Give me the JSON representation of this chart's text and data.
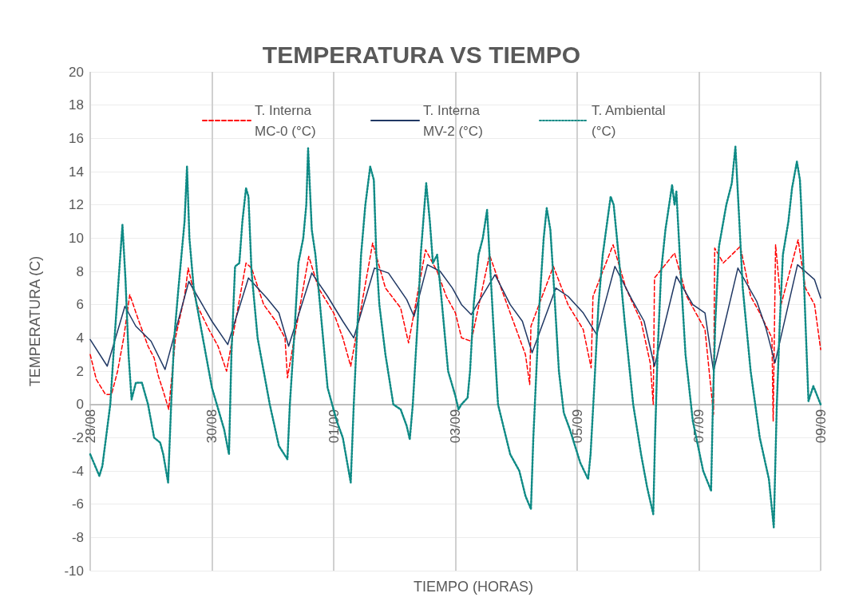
{
  "chart_data": {
    "type": "line",
    "title": "TEMPERATURA VS TIEMPO",
    "xlabel": "TIEMPO (HORAS)",
    "ylabel": "TEMPERATURA (C)",
    "xlim": [
      "--08-28",
      "--09-09"
    ],
    "xticks": [
      {
        "value": "--08-28",
        "label": "28/08"
      },
      {
        "value": "--08-30",
        "label": "30/08"
      },
      {
        "value": "--09-01",
        "label": "01/09"
      },
      {
        "value": "--09-03",
        "label": "03/09"
      },
      {
        "value": "--09-05",
        "label": "05/09"
      },
      {
        "value": "--09-07",
        "label": "07/09"
      },
      {
        "value": "--09-09",
        "label": "09/09"
      }
    ],
    "ylim": [
      -10,
      20
    ],
    "yticks": [
      -10,
      -8,
      -6,
      -4,
      -2,
      0,
      2,
      4,
      6,
      8,
      10,
      12,
      14,
      16,
      18,
      20
    ],
    "grid": true,
    "legend": "top",
    "marker": "none",
    "series": [
      {
        "name": "T. Interna MC-0 (°C)",
        "color": "#ff0000",
        "line_style": "dashed",
        "x": [
          "--08-28T00:00",
          "--08-28T02:24",
          "--08-28T06:00",
          "--08-28T08:24",
          "--08-28T10:48",
          "--08-28T13:12",
          "--08-28T15:36",
          "--08-28T19:12",
          "--08-28T22:48",
          "--08-29T01:12",
          "--08-29T02:53",
          "--08-29T04:48",
          "--08-29T06:58",
          "--08-29T09:36",
          "--08-29T13:12",
          "--08-29T14:38",
          "--08-29T18:00",
          "--08-29T22:48",
          "--08-30T02:24",
          "--08-30T05:46",
          "--08-30T13:26",
          "--08-30T15:36",
          "--08-30T20:24",
          "--08-31T01:12",
          "--08-31T04:48",
          "--08-31T05:46",
          "--08-31T14:10",
          "--08-31T18:00",
          "--09-01T00:00",
          "--09-01T03:36",
          "--09-01T06:43",
          "--09-01T15:22",
          "--09-01T20:24",
          "--09-02T02:24",
          "--09-02T05:31",
          "--09-02T12:14",
          "--09-02T16:48",
          "--09-02T20:24",
          "--09-03T00:00",
          "--09-03T02:24",
          "--09-03T06:14",
          "--09-03T13:26",
          "--09-03T18:00",
          "--09-03T22:48",
          "--09-04T03:36",
          "--09-04T05:17",
          "--09-04T05:46",
          "--09-04T14:38",
          "--09-04T20:24",
          "--09-05T02:24",
          "--09-05T05:31",
          "--09-05T06:14",
          "--09-05T14:10",
          "--09-05T19:12",
          "--09-06T01:12",
          "--09-06T04:48",
          "--09-06T06:00",
          "--09-06T06:29",
          "--09-06T14:24",
          "--09-06T19:12",
          "--09-07T02:24",
          "--09-07T05:46",
          "--09-07T06:14",
          "--09-07T09:36",
          "--09-07T16:19",
          "--09-07T20:24",
          "--09-08T00:00",
          "--09-08T04:48",
          "--09-08T05:17",
          "--09-08T06:14",
          "--09-08T08:24",
          "--09-08T15:07",
          "--09-08T18:00",
          "--09-08T21:36",
          "--09-09T00:00"
        ],
        "values": [
          3.0,
          1.5,
          0.6,
          0.6,
          2,
          4,
          6.6,
          5,
          3.5,
          2.8,
          1.7,
          0.8,
          -0.3,
          4,
          6.5,
          8.2,
          6,
          4.5,
          3.5,
          2.0,
          8.5,
          8.2,
          6,
          5,
          4,
          1.6,
          8.9,
          7,
          5.5,
          4,
          2.3,
          9.7,
          7,
          5.8,
          3.7,
          9.3,
          8,
          6.5,
          5.5,
          4,
          3.8,
          9.0,
          7,
          5,
          3,
          1.2,
          4.7,
          8.3,
          6,
          4.5,
          2.2,
          6.5,
          9.6,
          7,
          5,
          2.5,
          0,
          7.6,
          9.1,
          6.5,
          4.5,
          -0.6,
          9.4,
          8.5,
          9.5,
          6.5,
          5.5,
          4,
          -1.0,
          9.6,
          6,
          9.9,
          7,
          6,
          3.3
        ]
      },
      {
        "name": "T. Interna MV-2 (°C)",
        "color": "#203864",
        "line_style": "solid",
        "x": [
          "--08-28T00:00",
          "--08-28T06:43",
          "--08-28T13:41",
          "--08-28T18:00",
          "--08-29T00:00",
          "--08-29T05:31",
          "--08-29T14:53",
          "--08-30T00:00",
          "--08-30T06:14",
          "--08-30T14:24",
          "--08-30T21:36",
          "--08-31T02:24",
          "--08-31T06:14",
          "--08-31T15:22",
          "--08-31T21:36",
          "--09-01T03:36",
          "--09-01T07:55",
          "--09-01T16:05",
          "--09-01T21:36",
          "--09-02T04:48",
          "--09-02T07:41",
          "--09-02T12:58",
          "--09-02T18:00",
          "--09-02T22:48",
          "--09-03T02:24",
          "--09-03T06:14",
          "--09-03T15:36",
          "--09-03T21:36",
          "--09-04T02:24",
          "--09-04T06:14",
          "--09-04T15:36",
          "--09-04T20:24",
          "--09-05T02:24",
          "--09-05T07:41",
          "--09-05T14:53",
          "--09-05T21:36",
          "--09-06T02:24",
          "--09-06T06:29",
          "--09-06T15:07",
          "--09-06T21:36",
          "--09-07T02:24",
          "--09-07T05:46",
          "--09-07T15:22",
          "--09-07T22:48",
          "--09-08T02:24",
          "--09-08T06:00",
          "--09-08T14:53",
          "--09-08T21:36",
          "--09-09T00:00"
        ],
        "values": [
          3.9,
          2.3,
          5.9,
          4.7,
          3.8,
          2.1,
          7.4,
          5,
          3.6,
          7.6,
          6.4,
          5.5,
          3.5,
          7.9,
          6.5,
          5,
          4.0,
          8.2,
          7.9,
          6.3,
          5.3,
          8.4,
          8.0,
          7,
          6,
          5.4,
          7.8,
          6,
          5,
          3.1,
          7.0,
          6.5,
          5.5,
          4.2,
          8.3,
          6.3,
          5,
          2.3,
          7.7,
          6,
          5.5,
          2.0,
          8.2,
          6.2,
          4.6,
          2.5,
          8.4,
          7.5,
          6.4
        ]
      },
      {
        "name": "T. Ambiental (°C)",
        "color": "#0e8a85",
        "line_style": "dotted",
        "x": [
          "--08-28T00:00",
          "--08-28T03:36",
          "--08-28T04:48",
          "--08-28T07:55",
          "--08-28T09:36",
          "--08-28T11:31",
          "--08-28T12:43",
          "--08-28T13:55",
          "--08-28T15:07",
          "--08-28T16:19",
          "--08-28T18:00",
          "--08-28T20:24",
          "--08-28T22:48",
          "--08-29T01:12",
          "--08-29T03:36",
          "--08-29T04:48",
          "--08-29T06:43",
          "--08-29T07:55",
          "--08-29T09:07",
          "--08-29T10:48",
          "--08-29T12:00",
          "--08-29T13:12",
          "--08-29T14:10",
          "--08-29T15:07",
          "--08-29T16:48",
          "--08-29T20:24",
          "--08-30T00:00",
          "--08-30T04:48",
          "--08-30T06:43",
          "--08-30T07:41",
          "--08-30T09:07",
          "--08-30T10:48",
          "--08-30T12:00",
          "--08-30T13:26",
          "--08-30T14:24",
          "--08-30T15:36",
          "--08-30T18:00",
          "--08-30T22:48",
          "--08-31T02:24",
          "--08-31T05:46",
          "--08-31T06:43",
          "--08-31T08:24",
          "--08-31T10:05",
          "--08-31T12:00",
          "--08-31T13:12",
          "--08-31T13:55",
          "--08-31T15:22",
          "--08-31T16:48",
          "--08-31T19:12",
          "--08-31T21:36",
          "--09-01T01:12",
          "--09-01T03:36",
          "--09-01T06:43",
          "--09-01T07:55",
          "--09-01T09:07",
          "--09-01T10:48",
          "--09-01T12:29",
          "--09-01T14:24",
          "--09-01T15:50",
          "--09-01T16:48",
          "--09-01T18:00",
          "--09-01T20:24",
          "--09-01T23:31",
          "--09-02T02:24",
          "--09-02T04:48",
          "--09-02T06:00",
          "--09-02T07:12",
          "--09-02T09:07",
          "--09-02T10:19",
          "--09-02T12:29",
          "--09-02T13:55",
          "--09-02T15:07",
          "--09-02T16:48",
          "--09-02T18:43",
          "--09-02T21:07",
          "--09-03T00:00",
          "--09-03T01:12",
          "--09-03T02:24",
          "--09-03T04:48",
          "--09-03T05:46",
          "--09-03T07:12",
          "--09-03T09:07",
          "--09-03T10:48",
          "--09-03T12:29",
          "--09-03T13:26",
          "--09-03T14:53",
          "--09-03T16:48",
          "--09-03T21:36",
          "--09-04T01:12",
          "--09-04T03:36",
          "--09-04T05:46",
          "--09-04T06:43",
          "--09-04T07:55",
          "--09-04T09:07",
          "--09-04T10:48",
          "--09-04T12:00",
          "--09-04T13:26",
          "--09-04T14:53",
          "--09-04T16:48",
          "--09-04T18:43",
          "--09-04T21:07",
          "--09-05T01:12",
          "--09-05T04:19",
          "--09-05T05:17",
          "--09-05T06:43",
          "--09-05T08:24",
          "--09-05T10:05",
          "--09-05T13:12",
          "--09-05T14:24",
          "--09-05T16:19",
          "--09-05T18:43",
          "--09-05T22:05",
          "--09-06T01:12",
          "--09-06T03:36",
          "--09-06T06:00",
          "--09-06T06:43",
          "--09-06T07:41",
          "--09-06T09:07",
          "--09-06T10:48",
          "--09-06T13:26",
          "--09-06T14:24",
          "--09-06T15:07",
          "--09-06T16:48",
          "--09-06T18:43",
          "--09-06T21:36",
          "--09-07T01:41",
          "--09-07T04:19",
          "--09-07T04:48",
          "--09-07T05:31",
          "--09-07T06:29",
          "--09-07T07:55",
          "--09-07T10:48",
          "--09-07T12:58",
          "--09-07T14:24",
          "--09-07T15:36",
          "--09-07T17:17",
          "--09-07T20:24",
          "--09-08T00:00",
          "--09-08T02:53",
          "--09-08T03:36",
          "--09-08T05:31",
          "--09-08T06:43",
          "--09-08T07:55",
          "--09-08T09:07",
          "--09-08T11:17",
          "--09-08T12:43",
          "--09-08T14:38",
          "--09-08T15:50",
          "--09-08T16:19",
          "--09-08T18:00",
          "--09-08T19:12",
          "--09-08T21:07",
          "--09-09T00:00"
        ],
        "values": [
          -3,
          -4.3,
          -3.7,
          0,
          4,
          8.2,
          10.8,
          7.5,
          3,
          0.3,
          1.3,
          1.3,
          0,
          -2,
          -2.3,
          -3,
          -4.7,
          0,
          4,
          7,
          9,
          11,
          14.3,
          10,
          7,
          4,
          1,
          -1.5,
          -3.0,
          3,
          8.3,
          8.5,
          11,
          13,
          12.5,
          8,
          4,
          0,
          -2.5,
          -3.3,
          0,
          4,
          8.5,
          10,
          12,
          15.4,
          10.5,
          9,
          5,
          1,
          -1,
          -2,
          -4.7,
          0,
          4,
          9,
          12,
          14.3,
          13.5,
          9,
          6,
          3,
          0,
          -0.3,
          -1.3,
          -2.1,
          0,
          5,
          9,
          13.3,
          11,
          8.5,
          9,
          6,
          2,
          0.5,
          -0.3,
          0,
          0.4,
          2,
          6,
          9,
          10,
          11.7,
          9,
          5,
          0,
          -3,
          -4,
          -5.5,
          -6.3,
          -2,
          2,
          6,
          10,
          11.8,
          10.5,
          7,
          2,
          -0.5,
          -1.5,
          -3.5,
          -4.5,
          -3,
          1,
          6,
          9,
          12.5,
          12,
          9,
          5,
          0,
          -3,
          -5,
          -6.6,
          -2,
          3,
          8,
          10.5,
          13.2,
          12,
          12.8,
          8,
          3,
          -1,
          -4,
          -5,
          -5.2,
          0,
          5,
          9.5,
          12,
          13.3,
          15.5,
          12,
          7,
          2,
          -2,
          -4,
          -4.5,
          -7.4,
          0,
          5,
          9,
          11,
          13,
          14.6,
          13.5,
          12,
          5,
          0.2,
          1.1,
          0
        ]
      }
    ]
  }
}
